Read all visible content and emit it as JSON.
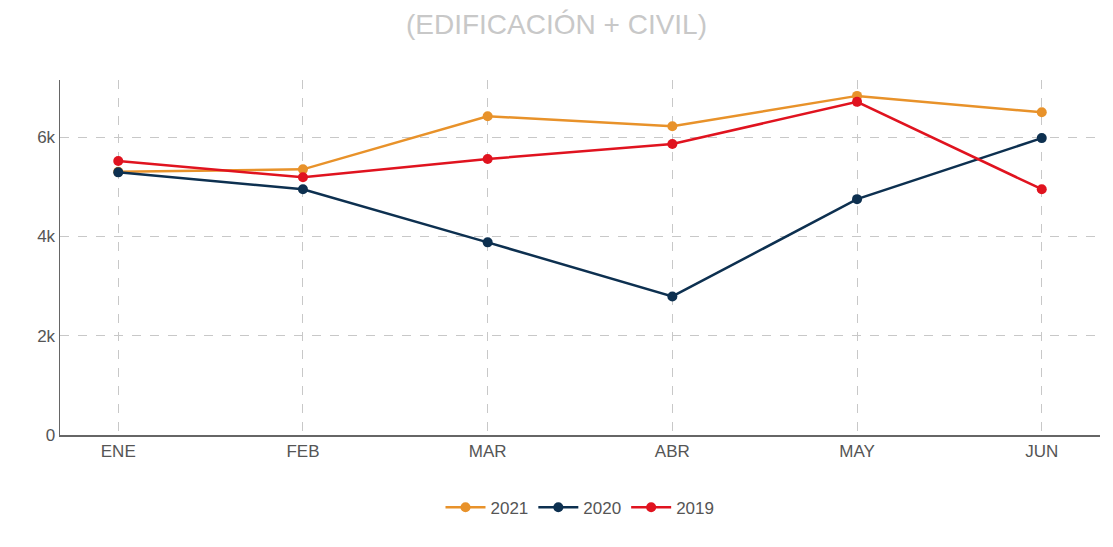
{
  "chart_data": {
    "type": "line",
    "title": "(EDIFICACIÓN + CIVIL)",
    "categories": [
      "ENE",
      "FEB",
      "MAR",
      "ABR",
      "MAY",
      "JUN"
    ],
    "series": [
      {
        "name": "2021",
        "color": "#e8922a",
        "values": [
          5300,
          5350,
          6420,
          6220,
          6830,
          6500
        ]
      },
      {
        "name": "2020",
        "color": "#0d3050",
        "values": [
          5290,
          4950,
          3880,
          2790,
          4750,
          5980
        ]
      },
      {
        "name": "2019",
        "color": "#e0131f",
        "values": [
          5520,
          5190,
          5560,
          5860,
          6710,
          4950
        ]
      }
    ],
    "ylim": [
      0,
      7150
    ],
    "yticks": [
      0,
      {
        "value": 2000,
        "label": "2k"
      },
      {
        "value": 4000,
        "label": "4k"
      },
      {
        "value": 6000,
        "label": "6k"
      }
    ],
    "grid": true,
    "legend": "bottom",
    "marker": "circle"
  }
}
